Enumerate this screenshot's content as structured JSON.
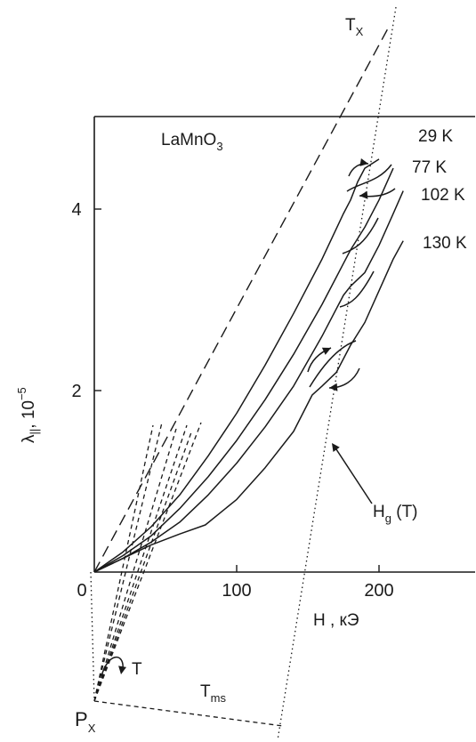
{
  "chart_data": {
    "type": "line",
    "material": "LaMnO",
    "material_sub": "3",
    "xlabel": "H , кЭ",
    "ylabel_main": "λ",
    "ylabel_sub": "||",
    "ylabel_unit": ", 10",
    "ylabel_exp": "−5",
    "xlim": [
      0,
      270
    ],
    "ylim": [
      0,
      5
    ],
    "x_ticks": [
      0,
      100,
      200
    ],
    "y_ticks": [
      2,
      4
    ],
    "grid": false,
    "series": [
      {
        "name": "29 K",
        "x": [
          0,
          20,
          40,
          60,
          80,
          100,
          120,
          140,
          160,
          175,
          180,
          185,
          190,
          200
        ],
        "y": [
          0,
          0.22,
          0.5,
          0.85,
          1.28,
          1.75,
          2.28,
          2.85,
          3.45,
          3.95,
          4.1,
          4.3,
          4.45,
          4.55
        ]
      },
      {
        "name": "77 K",
        "x": [
          0,
          20,
          40,
          60,
          80,
          100,
          120,
          140,
          160,
          175,
          180,
          190,
          200,
          210
        ],
        "y": [
          0,
          0.18,
          0.4,
          0.7,
          1.05,
          1.45,
          1.9,
          2.4,
          2.95,
          3.4,
          3.55,
          3.8,
          4.1,
          4.45
        ]
      },
      {
        "name": "102 K",
        "x": [
          0,
          20,
          40,
          60,
          80,
          100,
          120,
          140,
          160,
          175,
          180,
          190,
          200,
          210,
          217
        ],
        "y": [
          0,
          0.15,
          0.33,
          0.55,
          0.85,
          1.2,
          1.6,
          2.05,
          2.6,
          3.05,
          3.15,
          3.3,
          3.6,
          3.95,
          4.2
        ]
      },
      {
        "name": "130 K",
        "x": [
          0,
          20,
          40,
          60,
          78,
          100,
          120,
          140,
          153,
          160,
          170,
          180,
          190,
          200,
          210,
          217
        ],
        "y": [
          0,
          0.15,
          0.3,
          0.42,
          0.52,
          0.8,
          1.15,
          1.55,
          1.95,
          2.05,
          2.2,
          2.5,
          2.75,
          3.1,
          3.45,
          3.65
        ]
      }
    ],
    "line_labels": {
      "tx": "T",
      "tx_sub": "X",
      "hg": "H",
      "hg_sub": "g",
      "hg_arg": " (T)",
      "px": "P",
      "px_sub": "X",
      "t": "T",
      "tms": "T",
      "tms_sub": "ms"
    }
  }
}
